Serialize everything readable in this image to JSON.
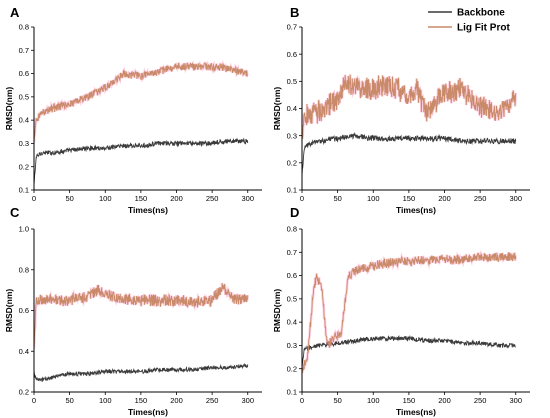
{
  "chart_data": {
    "type": "line",
    "legend": {
      "placement": "top-right",
      "entries": [
        {
          "name": "Backbone",
          "color": "#3a3a3a"
        },
        {
          "name": "Lig Fit Prot",
          "color": "#c98a6a"
        }
      ]
    },
    "panels": [
      {
        "letter": "A",
        "xlabel": "Times(ns)",
        "ylabel": "RMSD(nm)",
        "xlim": [
          0,
          320
        ],
        "ylim": [
          0.1,
          0.8
        ],
        "xticks": [
          0,
          50,
          100,
          150,
          200,
          250,
          300
        ],
        "yticks": [
          0.1,
          0.2,
          0.3,
          0.4,
          0.5,
          0.6,
          0.7,
          0.8
        ],
        "tick_decimals": 1,
        "series": [
          {
            "name": "Backbone",
            "x": [
              0,
              3,
              10,
              25,
              50,
              75,
              100,
              125,
              150,
              175,
              200,
              225,
              250,
              275,
              300
            ],
            "y": [
              0.12,
              0.24,
              0.26,
              0.26,
              0.27,
              0.28,
              0.28,
              0.29,
              0.29,
              0.3,
              0.3,
              0.3,
              0.3,
              0.31,
              0.31
            ],
            "noise": 0.012
          },
          {
            "name": "Lig Fit Prot",
            "x": [
              0,
              3,
              10,
              25,
              50,
              75,
              100,
              110,
              125,
              150,
              175,
              200,
              225,
              250,
              275,
              300
            ],
            "y": [
              0.3,
              0.4,
              0.43,
              0.45,
              0.47,
              0.5,
              0.54,
              0.56,
              0.6,
              0.59,
              0.61,
              0.63,
              0.63,
              0.63,
              0.62,
              0.6
            ],
            "noise": 0.02
          }
        ]
      },
      {
        "letter": "B",
        "xlabel": "Times(ns)",
        "ylabel": "RMSD(nm)",
        "xlim": [
          0,
          320
        ],
        "ylim": [
          0.1,
          0.7
        ],
        "xticks": [
          0,
          50,
          100,
          150,
          200,
          250,
          300
        ],
        "yticks": [
          0.1,
          0.2,
          0.3,
          0.4,
          0.5,
          0.6,
          0.7
        ],
        "tick_decimals": 1,
        "series": [
          {
            "name": "Backbone",
            "x": [
              0,
              3,
              10,
              25,
              50,
              75,
              100,
              125,
              150,
              175,
              200,
              225,
              250,
              275,
              300
            ],
            "y": [
              0.15,
              0.25,
              0.27,
              0.28,
              0.29,
              0.3,
              0.29,
              0.29,
              0.29,
              0.29,
              0.29,
              0.28,
              0.28,
              0.28,
              0.28
            ],
            "noise": 0.012
          },
          {
            "name": "Lig Fit Prot",
            "x": [
              0,
              3,
              10,
              25,
              50,
              60,
              75,
              100,
              125,
              150,
              160,
              175,
              200,
              225,
              250,
              275,
              300
            ],
            "y": [
              0.3,
              0.38,
              0.37,
              0.39,
              0.43,
              0.5,
              0.48,
              0.47,
              0.49,
              0.44,
              0.48,
              0.38,
              0.46,
              0.47,
              0.41,
              0.38,
              0.45
            ],
            "noise": 0.05
          }
        ]
      },
      {
        "letter": "C",
        "xlabel": "Times(ns)",
        "ylabel": "RMSD(nm)",
        "xlim": [
          0,
          320
        ],
        "ylim": [
          0.2,
          1.0
        ],
        "xticks": [
          0,
          50,
          100,
          150,
          200,
          250,
          300
        ],
        "yticks": [
          0.2,
          0.4,
          0.6,
          0.8,
          1.0
        ],
        "tick_decimals": 1,
        "series": [
          {
            "name": "Backbone",
            "x": [
              0,
              3,
              10,
              25,
              50,
              75,
              100,
              125,
              150,
              175,
              200,
              225,
              250,
              275,
              300
            ],
            "y": [
              0.3,
              0.26,
              0.26,
              0.27,
              0.29,
              0.29,
              0.3,
              0.3,
              0.3,
              0.31,
              0.31,
              0.31,
              0.32,
              0.32,
              0.33
            ],
            "noise": 0.012
          },
          {
            "name": "Lig Fit Prot",
            "x": [
              0,
              3,
              10,
              25,
              50,
              75,
              90,
              100,
              125,
              150,
              175,
              200,
              225,
              250,
              265,
              275,
              300
            ],
            "y": [
              0.4,
              0.65,
              0.65,
              0.65,
              0.65,
              0.67,
              0.7,
              0.68,
              0.66,
              0.65,
              0.65,
              0.65,
              0.64,
              0.65,
              0.72,
              0.66,
              0.65
            ],
            "noise": 0.035
          }
        ]
      },
      {
        "letter": "D",
        "xlabel": "Times(ns)",
        "ylabel": "RMSD(nm)",
        "xlim": [
          0,
          320
        ],
        "ylim": [
          0.1,
          0.8
        ],
        "xticks": [
          0,
          50,
          100,
          150,
          200,
          250,
          300
        ],
        "yticks": [
          0.1,
          0.2,
          0.3,
          0.4,
          0.5,
          0.6,
          0.7,
          0.8
        ],
        "tick_decimals": 1,
        "series": [
          {
            "name": "Backbone",
            "x": [
              0,
              3,
              10,
              25,
              50,
              75,
              100,
              125,
              150,
              175,
              200,
              225,
              250,
              275,
              300
            ],
            "y": [
              0.2,
              0.28,
              0.29,
              0.3,
              0.31,
              0.32,
              0.33,
              0.33,
              0.33,
              0.32,
              0.32,
              0.31,
              0.31,
              0.3,
              0.3
            ],
            "noise": 0.012
          },
          {
            "name": "Lig Fit Prot",
            "x": [
              0,
              3,
              8,
              15,
              20,
              28,
              35,
              45,
              55,
              65,
              75,
              100,
              125,
              150,
              175,
              200,
              225,
              250,
              275,
              300
            ],
            "y": [
              0.2,
              0.22,
              0.26,
              0.5,
              0.6,
              0.55,
              0.3,
              0.33,
              0.35,
              0.6,
              0.62,
              0.64,
              0.66,
              0.66,
              0.67,
              0.67,
              0.67,
              0.68,
              0.68,
              0.68
            ],
            "noise": 0.025
          }
        ]
      }
    ]
  }
}
